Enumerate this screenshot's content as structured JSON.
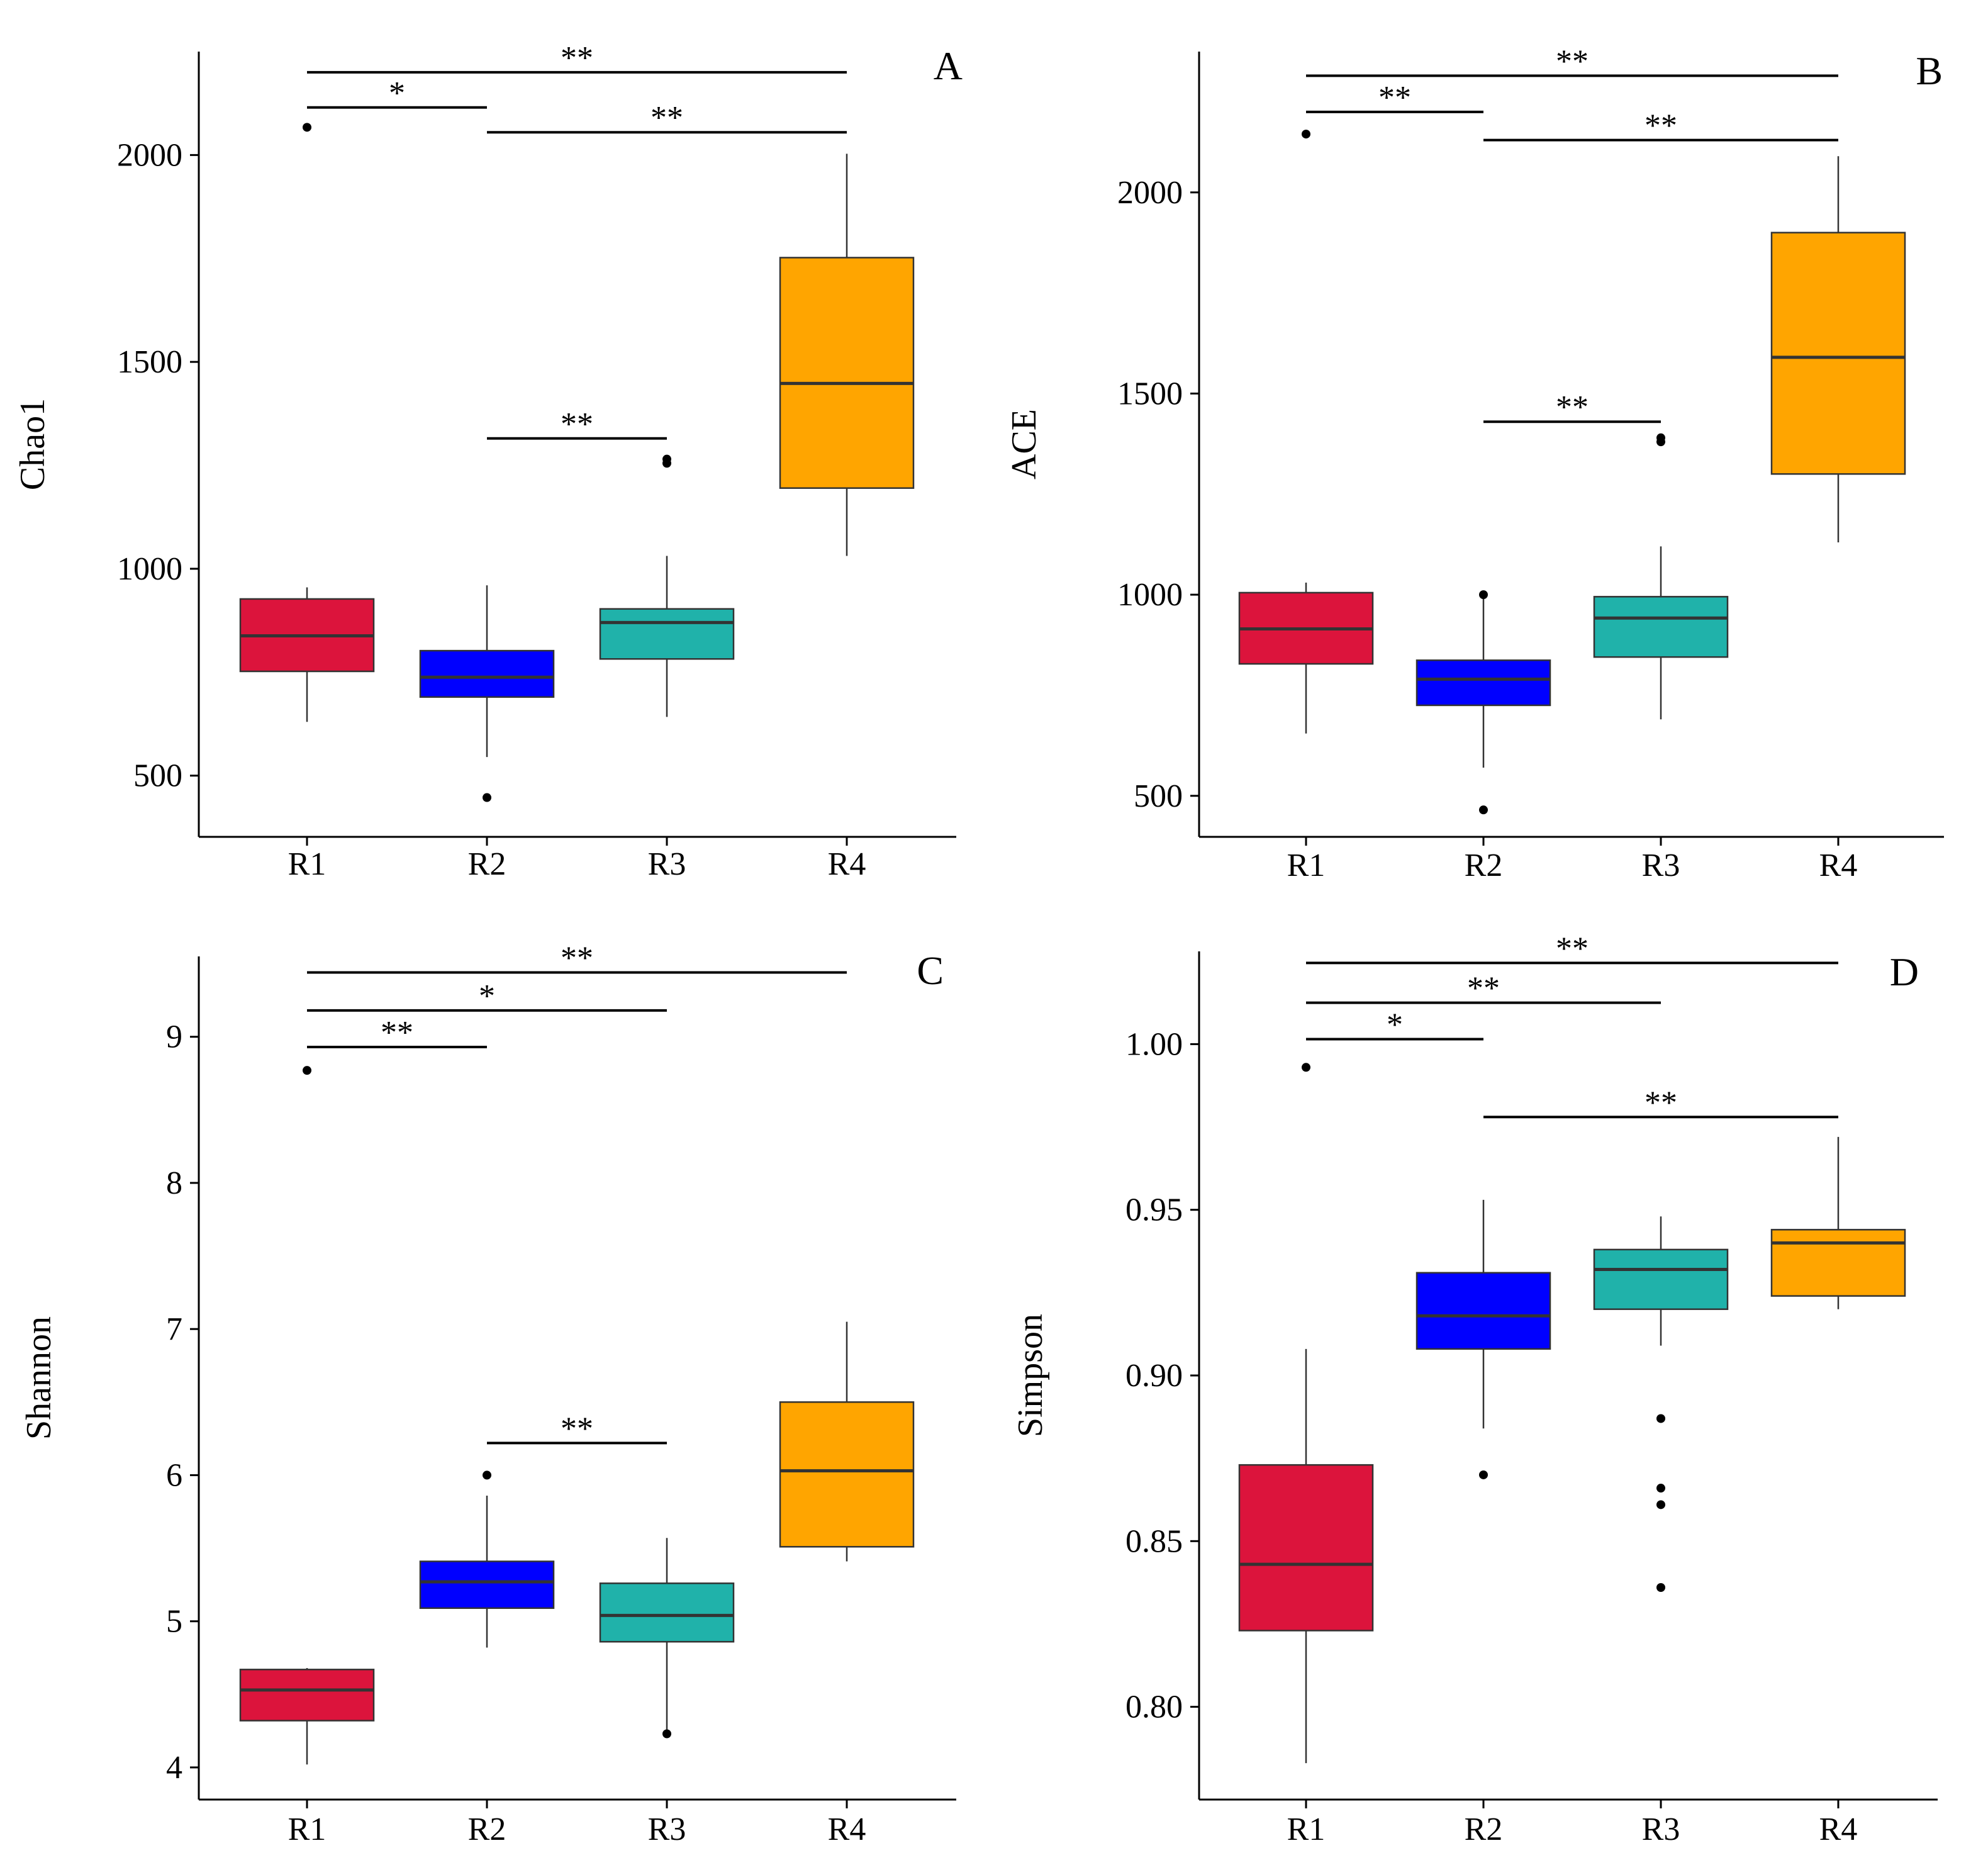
{
  "colors": {
    "R1": "#DC143C",
    "R2": "#0000FF",
    "R3": "#20B2AA",
    "R4": "#FFA500"
  },
  "chart_data": [
    {
      "type": "box",
      "panel": "A",
      "ylabel": "Chao1",
      "categories": [
        "R1",
        "R2",
        "R3",
        "R4"
      ],
      "ylim": [
        352,
        2250
      ],
      "yticks": [
        500,
        1000,
        1500,
        2000
      ],
      "ytick_labels": [
        "500",
        "1000",
        "1500",
        "2000"
      ],
      "boxes": [
        {
          "category": "R1",
          "whisker_low": 630,
          "q1": 752,
          "median": 838,
          "q3": 927,
          "whisker_high": 955,
          "outliers": [
            2067
          ]
        },
        {
          "category": "R2",
          "whisker_low": 545,
          "q1": 690,
          "median": 738,
          "q3": 802,
          "whisker_high": 960,
          "outliers": [
            447
          ]
        },
        {
          "category": "R3",
          "whisker_low": 642,
          "q1": 782,
          "median": 870,
          "q3": 903,
          "whisker_high": 1031,
          "outliers": [
            1255,
            1265
          ]
        },
        {
          "category": "R4",
          "whisker_low": 1031,
          "q1": 1195,
          "median": 1448,
          "q3": 1752,
          "whisker_high": 2003,
          "outliers": []
        }
      ],
      "significance": [
        {
          "from": "R1",
          "to": "R4",
          "label": "**",
          "y": 2200
        },
        {
          "from": "R1",
          "to": "R2",
          "label": "*",
          "y": 2115
        },
        {
          "from": "R2",
          "to": "R4",
          "label": "**",
          "y": 2055
        },
        {
          "from": "R2",
          "to": "R3",
          "label": "**",
          "y": 1315
        }
      ]
    },
    {
      "type": "box",
      "panel": "B",
      "ylabel": "ACE",
      "categories": [
        "R1",
        "R2",
        "R3",
        "R4"
      ],
      "ylim": [
        398,
        2350
      ],
      "yticks": [
        500,
        1000,
        1500,
        2000
      ],
      "ytick_labels": [
        "500",
        "1000",
        "1500",
        "2000"
      ],
      "boxes": [
        {
          "category": "R1",
          "whisker_low": 655,
          "q1": 828,
          "median": 915,
          "q3": 1005,
          "whisker_high": 1030,
          "outliers": [
            2145
          ]
        },
        {
          "category": "R2",
          "whisker_low": 570,
          "q1": 725,
          "median": 790,
          "q3": 837,
          "whisker_high": 1005,
          "outliers": [
            465,
            1000
          ]
        },
        {
          "category": "R3",
          "whisker_low": 690,
          "q1": 845,
          "median": 942,
          "q3": 995,
          "whisker_high": 1120,
          "outliers": [
            1380,
            1390
          ]
        },
        {
          "category": "R4",
          "whisker_low": 1130,
          "q1": 1300,
          "median": 1590,
          "q3": 1900,
          "whisker_high": 2090,
          "outliers": []
        }
      ],
      "significance": [
        {
          "from": "R1",
          "to": "R4",
          "label": "**",
          "y": 2290
        },
        {
          "from": "R1",
          "to": "R2",
          "label": "**",
          "y": 2200
        },
        {
          "from": "R2",
          "to": "R4",
          "label": "**",
          "y": 2130
        },
        {
          "from": "R2",
          "to": "R3",
          "label": "**",
          "y": 1430
        }
      ]
    },
    {
      "type": "box",
      "panel": "C",
      "ylabel": "Shannon",
      "categories": [
        "R1",
        "R2",
        "R3",
        "R4"
      ],
      "ylim": [
        3.78,
        9.55
      ],
      "yticks": [
        4,
        5,
        6,
        7,
        8,
        9
      ],
      "ytick_labels": [
        "4",
        "5",
        "6",
        "7",
        "8",
        "9"
      ],
      "boxes": [
        {
          "category": "R1",
          "whisker_low": 4.02,
          "q1": 4.32,
          "median": 4.53,
          "q3": 4.67,
          "whisker_high": 4.68,
          "outliers": [
            8.77
          ]
        },
        {
          "category": "R2",
          "whisker_low": 4.82,
          "q1": 5.09,
          "median": 5.27,
          "q3": 5.41,
          "whisker_high": 5.86,
          "outliers": [
            6.0
          ]
        },
        {
          "category": "R3",
          "whisker_low": 4.23,
          "q1": 4.86,
          "median": 5.04,
          "q3": 5.26,
          "whisker_high": 5.57,
          "outliers": [
            4.23
          ]
        },
        {
          "category": "R4",
          "whisker_low": 5.41,
          "q1": 5.51,
          "median": 6.03,
          "q3": 6.5,
          "whisker_high": 7.05,
          "outliers": []
        }
      ],
      "significance": [
        {
          "from": "R1",
          "to": "R4",
          "label": "**",
          "y": 9.44
        },
        {
          "from": "R1",
          "to": "R3",
          "label": "*",
          "y": 9.18
        },
        {
          "from": "R1",
          "to": "R2",
          "label": "**",
          "y": 8.93
        },
        {
          "from": "R2",
          "to": "R3",
          "label": "**",
          "y": 6.22
        }
      ]
    },
    {
      "type": "box",
      "panel": "D",
      "ylabel": "Simpson",
      "categories": [
        "R1",
        "R2",
        "R3",
        "R4"
      ],
      "ylim": [
        0.772,
        1.028
      ],
      "yticks": [
        0.8,
        0.85,
        0.9,
        0.95,
        1.0
      ],
      "ytick_labels": [
        "0.80",
        "0.85",
        "0.90",
        "0.95",
        "1.00"
      ],
      "boxes": [
        {
          "category": "R1",
          "whisker_low": 0.783,
          "q1": 0.823,
          "median": 0.843,
          "q3": 0.873,
          "whisker_high": 0.908,
          "outliers": [
            0.993
          ]
        },
        {
          "category": "R2",
          "whisker_low": 0.884,
          "q1": 0.908,
          "median": 0.918,
          "q3": 0.931,
          "whisker_high": 0.953,
          "outliers": [
            0.87
          ]
        },
        {
          "category": "R3",
          "whisker_low": 0.909,
          "q1": 0.92,
          "median": 0.932,
          "q3": 0.938,
          "whisker_high": 0.948,
          "outliers": [
            0.887,
            0.866,
            0.861,
            0.836
          ]
        },
        {
          "category": "R4",
          "whisker_low": 0.92,
          "q1": 0.924,
          "median": 0.94,
          "q3": 0.944,
          "whisker_high": 0.972,
          "outliers": []
        }
      ],
      "significance": [
        {
          "from": "R1",
          "to": "R4",
          "label": "**",
          "y": 1.0245
        },
        {
          "from": "R1",
          "to": "R3",
          "label": "**",
          "y": 1.0125
        },
        {
          "from": "R1",
          "to": "R2",
          "label": "*",
          "y": 1.0015
        },
        {
          "from": "R2",
          "to": "R4",
          "label": "**",
          "y": 0.978
        }
      ]
    }
  ]
}
